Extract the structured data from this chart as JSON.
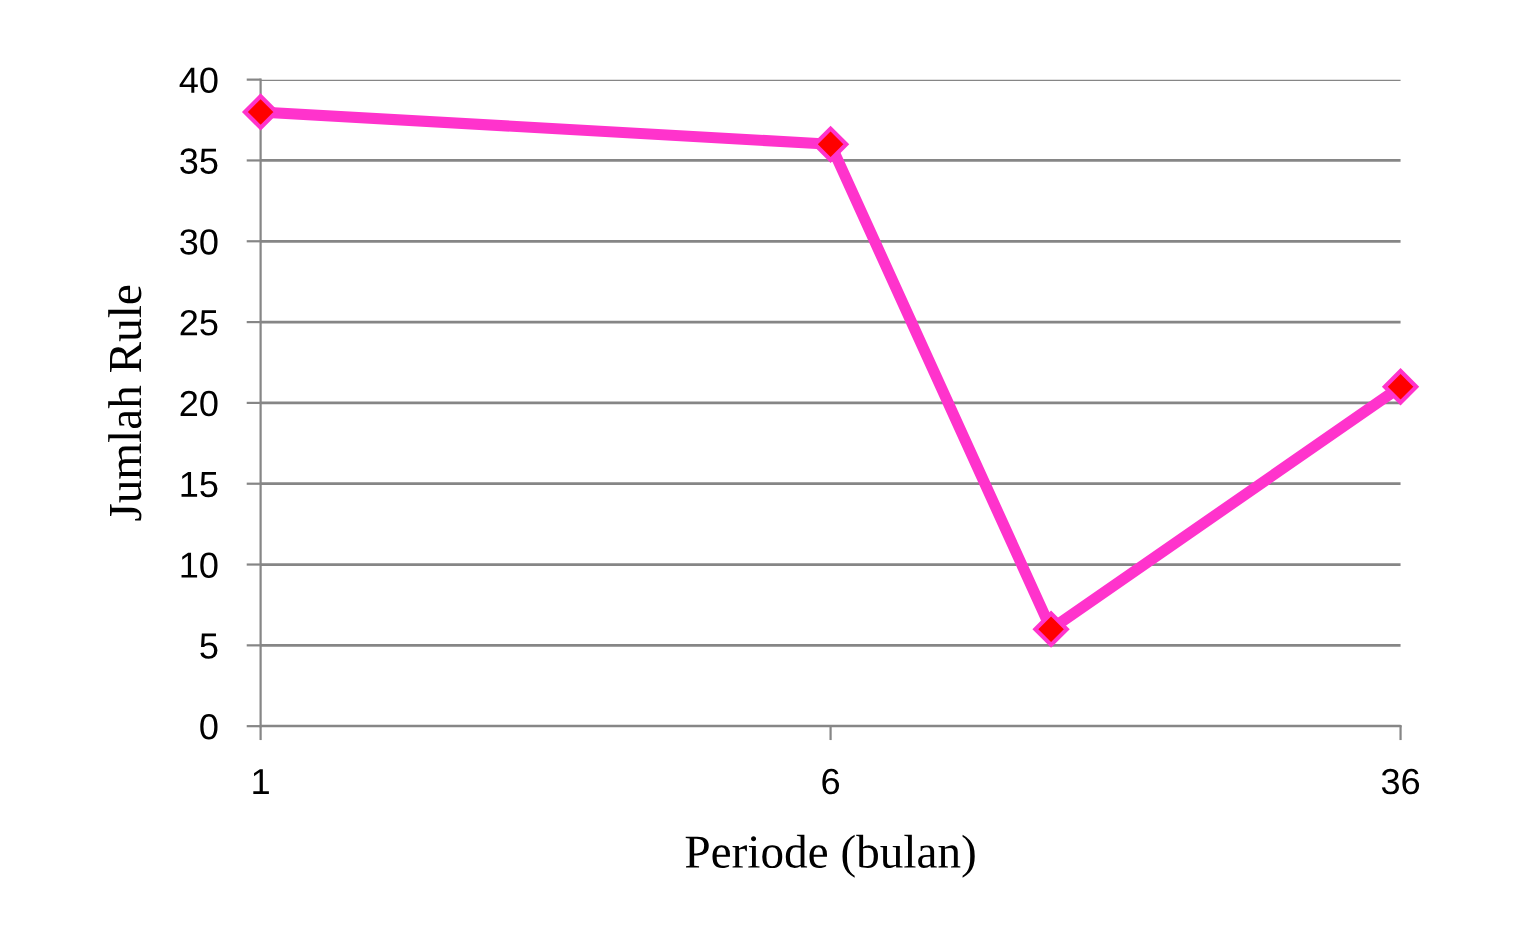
{
  "chart_data": {
    "type": "line",
    "xlabel": "Periode (bulan)",
    "ylabel": "Jumlah Rule",
    "x": [
      1,
      6,
      12,
      36
    ],
    "series": [
      {
        "color": "#ff33cc",
        "values": [
          38,
          36,
          6,
          21
        ]
      }
    ],
    "log": "x",
    "xlim": [
      1,
      36
    ],
    "xticks": [
      1,
      6,
      36
    ],
    "ylim": [
      0,
      40
    ],
    "yticks": [
      0,
      5,
      10,
      15,
      20,
      25,
      30,
      35,
      40
    ],
    "grid": "y",
    "marker": "diamond",
    "line_style": "solid"
  }
}
